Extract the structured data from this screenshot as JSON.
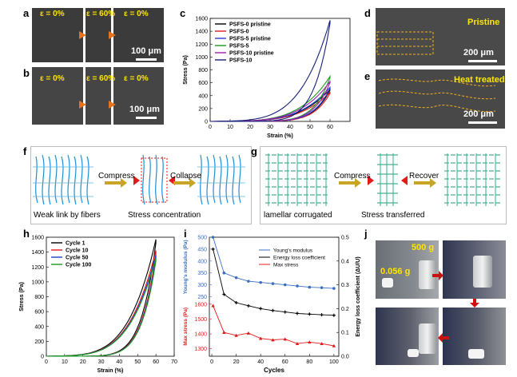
{
  "panels": {
    "a": {
      "letter": "a",
      "labels": [
        "ε = 0%",
        "ε = 60%",
        "ε = 0%"
      ],
      "scale": "100 μm"
    },
    "b": {
      "letter": "b",
      "labels": [
        "ε = 0%",
        "ε = 60%",
        "ε = 0%"
      ],
      "scale": "100 μm"
    },
    "c": {
      "letter": "c"
    },
    "d": {
      "letter": "d",
      "label": "Pristine",
      "scale": "200 μm"
    },
    "e": {
      "letter": "e",
      "label": "Heat treated",
      "scale": "200 μm"
    },
    "f": {
      "letter": "f",
      "step1": "Compress",
      "step2": "Collapse",
      "caption1": "Weak link by fibers",
      "caption2": "Stress concentration"
    },
    "g": {
      "letter": "g",
      "step1": "Compress",
      "step2": "Recover",
      "caption1": "lamellar corrugated",
      "caption2": "Stress transferred"
    },
    "h": {
      "letter": "h"
    },
    "i": {
      "letter": "i"
    },
    "j": {
      "letter": "j",
      "weight": "500 g",
      "mass": "0.056 g"
    }
  },
  "chart_data": [
    {
      "id": "c",
      "type": "line",
      "xlabel": "Strain (%)",
      "ylabel": "Stress (Pa)",
      "xlim": [
        0,
        70
      ],
      "ylim": [
        0,
        1600
      ],
      "xticks": [
        0,
        10,
        20,
        30,
        40,
        50,
        60
      ],
      "yticks": [
        0,
        200,
        400,
        600,
        800,
        1000,
        1200,
        1400,
        1600
      ],
      "legend_position": "top-left",
      "series": [
        {
          "name": "PSFS-0 pristine",
          "color": "#000000",
          "peak": 500
        },
        {
          "name": "PSFS-0",
          "color": "#e01b1b",
          "peak": 450
        },
        {
          "name": "PSFS-5 pristine",
          "color": "#1f3fd6",
          "peak": 530
        },
        {
          "name": "PSFS-5",
          "color": "#1a9a1a",
          "peak": 700
        },
        {
          "name": "PSFS-10 pristine",
          "color": "#9b1faa",
          "peak": 620
        },
        {
          "name": "PSFS-10",
          "color": "#16207a",
          "peak": 1570
        }
      ]
    },
    {
      "id": "h",
      "type": "line",
      "xlabel": "Strain (%)",
      "ylabel": "Stress (Pa)",
      "xlim": [
        0,
        70
      ],
      "ylim": [
        0,
        1600
      ],
      "xticks": [
        0,
        10,
        20,
        30,
        40,
        50,
        60,
        70
      ],
      "yticks": [
        0,
        200,
        400,
        600,
        800,
        1000,
        1200,
        1400,
        1600
      ],
      "legend_position": "top-left",
      "series": [
        {
          "name": "Cycle 1",
          "color": "#000000",
          "peak": 1570
        },
        {
          "name": "Cycle 10",
          "color": "#e01b1b",
          "peak": 1420
        },
        {
          "name": "Cycle 50",
          "color": "#1f3fd6",
          "peak": 1360
        },
        {
          "name": "Cycle 100",
          "color": "#1a9a1a",
          "peak": 1320
        }
      ]
    },
    {
      "id": "i",
      "type": "line",
      "xlabel": "Cycles",
      "ylabel_top": "Young's modulus (Pa)",
      "ylabel_bottom": "Max stress (Pa)",
      "ylabel_right": "Energy loss coefficient (ΔU/U)",
      "x": [
        1,
        10,
        20,
        30,
        40,
        50,
        60,
        70,
        80,
        90,
        100
      ],
      "legend_position": "top-right",
      "top_axis": {
        "ylim": [
          250,
          500
        ],
        "yticks": [
          250,
          300,
          350,
          400,
          450,
          500
        ]
      },
      "bottom_axis": {
        "ylim": [
          1250,
          1650
        ],
        "yticks": [
          1300,
          1400,
          1500,
          1600
        ]
      },
      "right_axis": {
        "ylim": [
          0.0,
          0.5
        ],
        "yticks": [
          0.0,
          0.1,
          0.2,
          0.3,
          0.4,
          0.5
        ]
      },
      "series": [
        {
          "name": "Young's modulus",
          "color": "#3a6fc4",
          "axis": "top",
          "values": [
            500,
            350,
            330,
            315,
            310,
            305,
            300,
            295,
            290,
            288,
            285
          ]
        },
        {
          "name": "Energy loss coefficient",
          "color": "#000000",
          "axis": "right",
          "values": [
            0.45,
            0.26,
            0.225,
            0.212,
            0.2,
            0.192,
            0.186,
            0.18,
            0.177,
            0.174,
            0.172
          ]
        },
        {
          "name": "Max stress",
          "color": "#e01b1b",
          "axis": "bottom",
          "values": [
            1590,
            1410,
            1390,
            1405,
            1370,
            1360,
            1365,
            1335,
            1345,
            1335,
            1320
          ]
        }
      ]
    }
  ]
}
